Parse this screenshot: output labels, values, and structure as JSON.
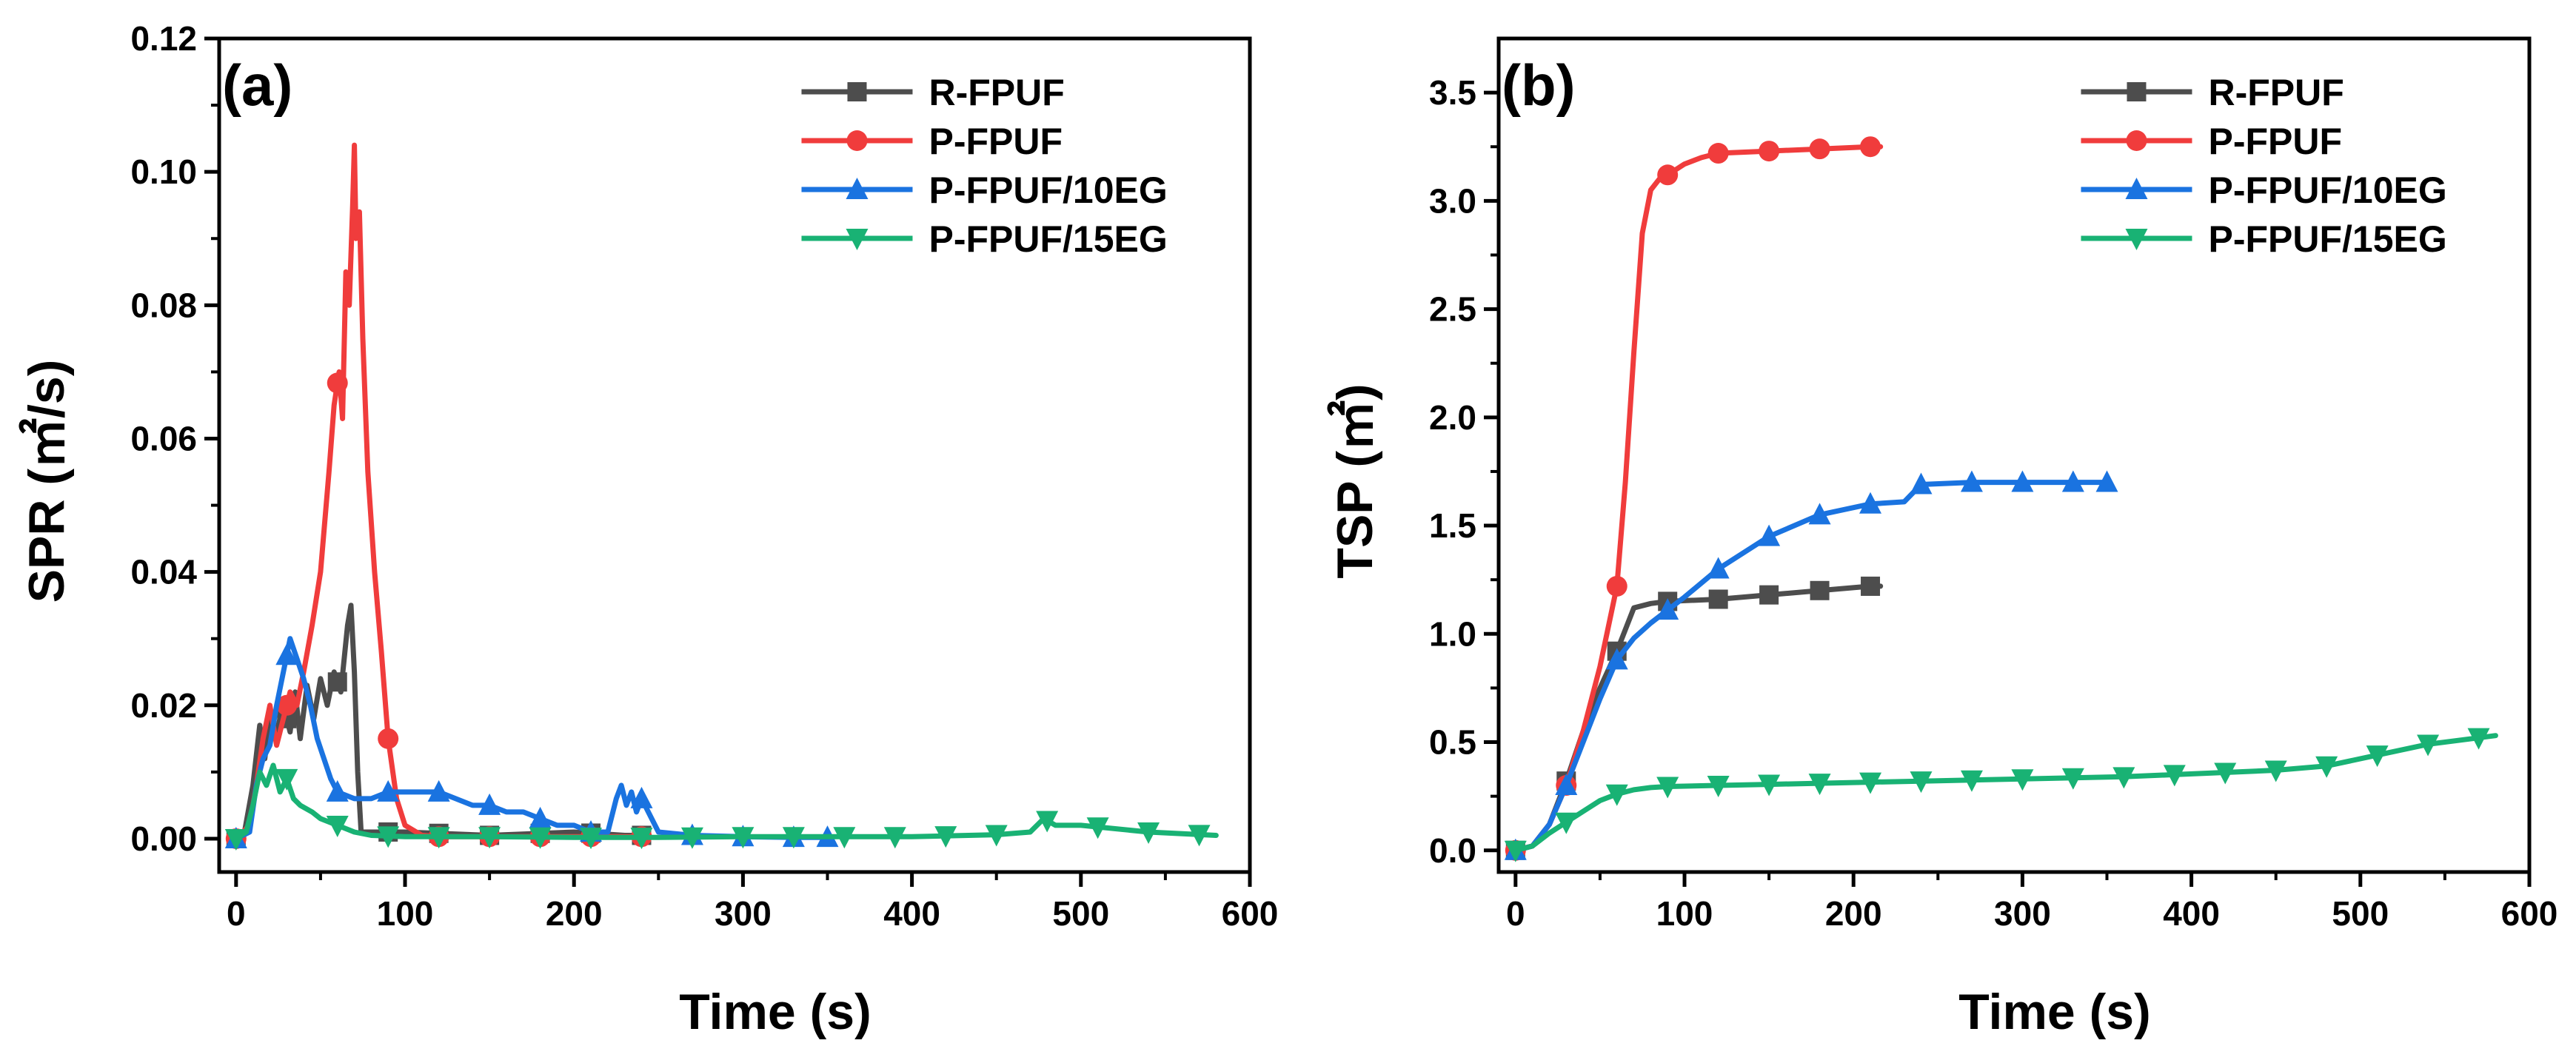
{
  "colors": {
    "R-FPUF": "#4d4d4d",
    "P-FPUF": "#f03c3c",
    "P-FPUF/10EG": "#1a73e0",
    "P-FPUF/15EG": "#19b274"
  },
  "chart_data": [
    {
      "type": "line",
      "panel_label": "(a)",
      "xlabel": "Time (s)",
      "ylabel": "SPR (㎡/s)",
      "xlim": [
        -10,
        600
      ],
      "ylim": [
        -0.005,
        0.12
      ],
      "xticks": [
        0,
        100,
        200,
        300,
        400,
        500,
        600
      ],
      "yticks": [
        0.0,
        0.02,
        0.04,
        0.06,
        0.08,
        0.1,
        0.12
      ],
      "ytick_labels": [
        "0.00",
        "0.02",
        "0.04",
        "0.06",
        "0.08",
        "0.10",
        "0.12"
      ],
      "legend_position": "top-right",
      "series": [
        {
          "name": "R-FPUF",
          "marker": "square",
          "x": [
            0,
            5,
            10,
            14,
            17,
            20,
            24,
            28,
            32,
            35,
            38,
            42,
            46,
            50,
            54,
            58,
            62,
            66,
            68,
            70,
            72,
            74,
            80,
            100,
            150,
            200,
            230,
            240
          ],
          "y": [
            0,
            0.001,
            0.008,
            0.017,
            0.012,
            0.018,
            0.016,
            0.02,
            0.016,
            0.022,
            0.015,
            0.023,
            0.018,
            0.024,
            0.02,
            0.025,
            0.022,
            0.032,
            0.035,
            0.025,
            0.01,
            0.001,
            0.001,
            0.001,
            0.0005,
            0.001,
            0.0005,
            0.0005
          ],
          "marker_x": [
            0,
            30,
            60,
            90,
            120,
            150,
            180,
            210,
            240
          ]
        },
        {
          "name": "P-FPUF",
          "marker": "circle",
          "x": [
            0,
            8,
            12,
            16,
            20,
            24,
            28,
            32,
            36,
            40,
            45,
            50,
            55,
            58,
            61,
            63,
            65,
            67,
            69,
            70,
            71,
            73,
            75,
            78,
            82,
            86,
            90,
            95,
            100,
            110,
            120,
            150,
            180,
            210,
            240
          ],
          "y": [
            0,
            0.002,
            0.008,
            0.015,
            0.02,
            0.014,
            0.018,
            0.022,
            0.02,
            0.025,
            0.032,
            0.04,
            0.055,
            0.065,
            0.07,
            0.063,
            0.085,
            0.08,
            0.095,
            0.104,
            0.09,
            0.094,
            0.075,
            0.055,
            0.04,
            0.028,
            0.015,
            0.006,
            0.002,
            0.0005,
            0.0003,
            0.0003,
            0.0003,
            0.0003,
            0.0003
          ],
          "marker_x": [
            0,
            30,
            60,
            90,
            120,
            150,
            180,
            210,
            240
          ]
        },
        {
          "name": "P-FPUF/10EG",
          "marker": "triangle-up",
          "x": [
            0,
            8,
            12,
            16,
            20,
            24,
            28,
            32,
            36,
            40,
            44,
            48,
            52,
            56,
            60,
            70,
            80,
            90,
            100,
            110,
            120,
            130,
            140,
            150,
            160,
            170,
            180,
            190,
            200,
            210,
            220,
            225,
            228,
            231,
            234,
            237,
            240,
            250,
            270,
            300,
            330,
            350
          ],
          "y": [
            0,
            0.001,
            0.008,
            0.012,
            0.014,
            0.02,
            0.025,
            0.03,
            0.027,
            0.024,
            0.02,
            0.015,
            0.012,
            0.009,
            0.007,
            0.006,
            0.006,
            0.007,
            0.007,
            0.007,
            0.007,
            0.006,
            0.005,
            0.005,
            0.004,
            0.004,
            0.003,
            0.002,
            0.002,
            0.001,
            0.001,
            0.006,
            0.008,
            0.005,
            0.007,
            0.004,
            0.006,
            0.001,
            0.0005,
            0.0003,
            0.0002,
            0.0002
          ],
          "marker_x": [
            0,
            30,
            60,
            90,
            120,
            150,
            180,
            210,
            240,
            270,
            300,
            330,
            350
          ]
        },
        {
          "name": "P-FPUF/15EG",
          "marker": "triangle-down",
          "x": [
            0,
            6,
            10,
            14,
            18,
            22,
            26,
            30,
            34,
            38,
            45,
            50,
            60,
            70,
            80,
            100,
            150,
            200,
            250,
            300,
            350,
            400,
            450,
            470,
            478,
            485,
            500,
            540,
            580
          ],
          "y": [
            0,
            0.001,
            0.005,
            0.01,
            0.008,
            0.011,
            0.007,
            0.009,
            0.006,
            0.005,
            0.004,
            0.003,
            0.002,
            0.001,
            0.0005,
            0.0003,
            0.0003,
            0.0002,
            0.0002,
            0.0003,
            0.0003,
            0.0003,
            0.0006,
            0.001,
            0.003,
            0.002,
            0.002,
            0.001,
            0.0005
          ],
          "marker_x": [
            0,
            30,
            60,
            90,
            120,
            150,
            180,
            210,
            240,
            270,
            300,
            330,
            360,
            390,
            420,
            450,
            480,
            510,
            540,
            570
          ]
        }
      ]
    },
    {
      "type": "line",
      "panel_label": "(b)",
      "xlabel": "Time (s)",
      "ylabel": "TSP (㎡)",
      "xlim": [
        -10,
        600
      ],
      "ylim": [
        -0.1,
        3.75
      ],
      "xticks": [
        0,
        100,
        200,
        300,
        400,
        500,
        600
      ],
      "yticks": [
        0.0,
        0.5,
        1.0,
        1.5,
        2.0,
        2.5,
        3.0,
        3.5
      ],
      "ytick_labels": [
        "0.0",
        "0.5",
        "1.0",
        "1.5",
        "2.0",
        "2.5",
        "3.0",
        "3.5"
      ],
      "legend_position": "top-right",
      "series": [
        {
          "name": "R-FPUF",
          "marker": "square",
          "x": [
            0,
            10,
            20,
            30,
            40,
            50,
            60,
            70,
            80,
            90,
            120,
            150,
            180,
            210,
            216
          ],
          "y": [
            0,
            0.02,
            0.12,
            0.32,
            0.55,
            0.75,
            0.92,
            1.12,
            1.14,
            1.15,
            1.16,
            1.18,
            1.2,
            1.22,
            1.22
          ],
          "marker_x": [
            0,
            30,
            60,
            90,
            120,
            150,
            180,
            210
          ]
        },
        {
          "name": "P-FPUF",
          "marker": "circle",
          "x": [
            0,
            10,
            20,
            30,
            40,
            50,
            60,
            65,
            70,
            75,
            80,
            85,
            90,
            100,
            110,
            120,
            150,
            180,
            210,
            216
          ],
          "y": [
            0,
            0.02,
            0.12,
            0.3,
            0.55,
            0.85,
            1.22,
            1.7,
            2.3,
            2.85,
            3.05,
            3.1,
            3.12,
            3.17,
            3.2,
            3.22,
            3.23,
            3.24,
            3.25,
            3.25
          ],
          "marker_x": [
            0,
            30,
            60,
            90,
            120,
            150,
            180,
            210
          ]
        },
        {
          "name": "P-FPUF/10EG",
          "marker": "triangle-up",
          "x": [
            0,
            10,
            20,
            30,
            40,
            50,
            60,
            70,
            80,
            90,
            100,
            120,
            150,
            180,
            210,
            230,
            240,
            270,
            300,
            330,
            350
          ],
          "y": [
            0,
            0.02,
            0.12,
            0.3,
            0.5,
            0.7,
            0.88,
            0.98,
            1.05,
            1.11,
            1.17,
            1.3,
            1.45,
            1.55,
            1.6,
            1.61,
            1.69,
            1.7,
            1.7,
            1.7,
            1.7
          ],
          "marker_x": [
            0,
            30,
            60,
            90,
            120,
            150,
            180,
            210,
            240,
            270,
            300,
            330,
            350
          ]
        },
        {
          "name": "P-FPUF/15EG",
          "marker": "triangle-down",
          "x": [
            0,
            10,
            20,
            30,
            40,
            50,
            60,
            70,
            80,
            90,
            120,
            150,
            180,
            210,
            240,
            270,
            300,
            330,
            360,
            390,
            420,
            450,
            480,
            510,
            540,
            570,
            580
          ],
          "y": [
            0,
            0.02,
            0.08,
            0.13,
            0.18,
            0.23,
            0.26,
            0.28,
            0.29,
            0.295,
            0.3,
            0.305,
            0.31,
            0.315,
            0.32,
            0.325,
            0.33,
            0.335,
            0.34,
            0.35,
            0.36,
            0.37,
            0.39,
            0.44,
            0.49,
            0.52,
            0.53
          ],
          "marker_x": [
            0,
            30,
            60,
            90,
            120,
            150,
            180,
            210,
            240,
            270,
            300,
            330,
            360,
            390,
            420,
            450,
            480,
            510,
            540,
            570
          ]
        }
      ]
    }
  ]
}
